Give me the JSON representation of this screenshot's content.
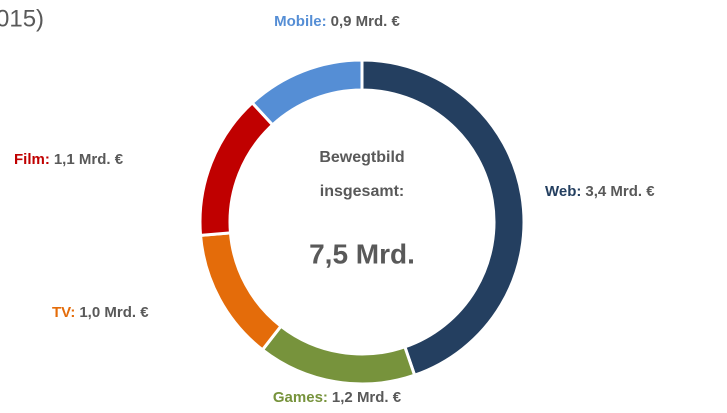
{
  "chart_data": {
    "type": "donut",
    "title": "015)",
    "categories": [
      "Web",
      "Games",
      "TV",
      "Film",
      "Mobile"
    ],
    "values": [
      3.4,
      1.2,
      1.0,
      1.1,
      0.9
    ],
    "value_labels": [
      "3,4 Mrd. €",
      "1,2 Mrd. €",
      "1,0 Mrd. €",
      "1,1 Mrd. €",
      "0,9 Mrd. €"
    ],
    "label_separator": ":",
    "colors": [
      "#243f60",
      "#77933c",
      "#e46c0a",
      "#c00000",
      "#558ed5"
    ],
    "center_text": [
      "Bewegtbild",
      "insgesamt:"
    ],
    "center_total": "7,5 Mrd."
  }
}
